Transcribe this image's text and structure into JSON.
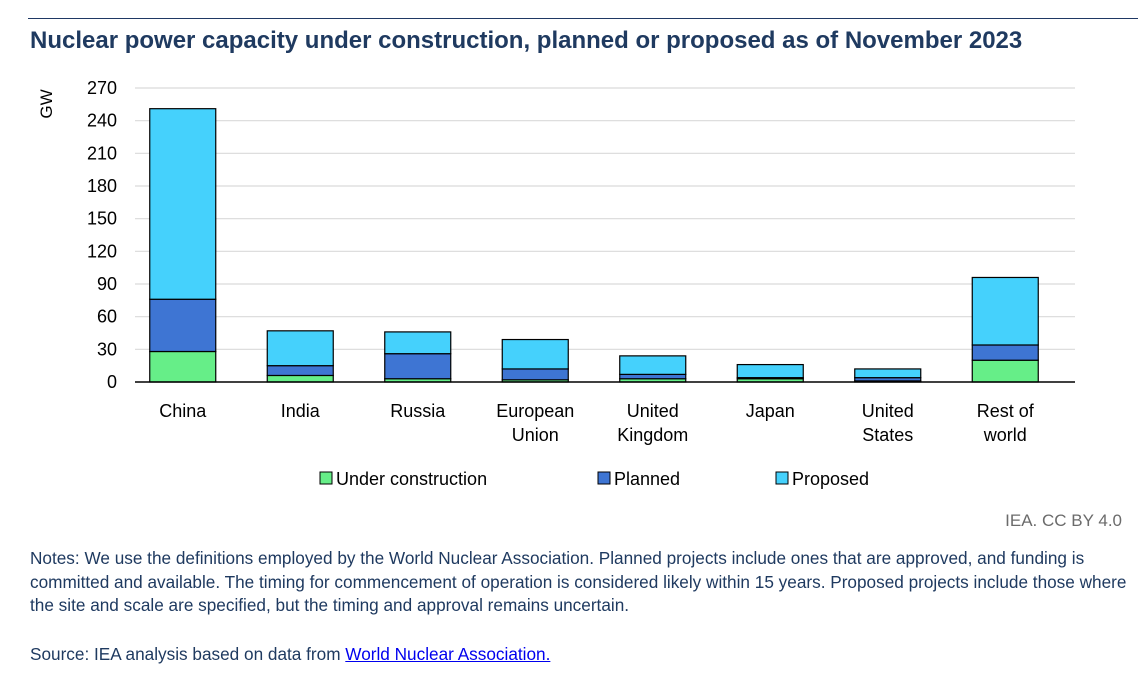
{
  "header": {
    "title": "Nuclear power capacity under construction, planned or proposed as of November 2023"
  },
  "chart_data": {
    "type": "bar",
    "stacked": true,
    "title": "Nuclear power capacity under construction, planned or proposed as of November 2023",
    "ylabel": "GW",
    "xlabel": "",
    "ylim": [
      0,
      270
    ],
    "yticks": [
      0,
      30,
      60,
      90,
      120,
      150,
      180,
      210,
      240,
      270
    ],
    "grid": true,
    "legend_position": "bottom",
    "categories": [
      [
        "China"
      ],
      [
        "India"
      ],
      [
        "Russia"
      ],
      [
        "European",
        "Union"
      ],
      [
        "United",
        "Kingdom"
      ],
      [
        "Japan"
      ],
      [
        "United",
        "States"
      ],
      [
        "Rest of",
        "world"
      ]
    ],
    "series": [
      {
        "name": "Under construction",
        "color": "#66ee88",
        "values": [
          28,
          6,
          3,
          2,
          3,
          3,
          1,
          20
        ]
      },
      {
        "name": "Planned",
        "color": "#3e75d3",
        "values": [
          48,
          9,
          23,
          10,
          4,
          1,
          3,
          14
        ]
      },
      {
        "name": "Proposed",
        "color": "#45d1fc",
        "values": [
          175,
          32,
          20,
          27,
          17,
          12,
          8,
          62
        ]
      }
    ]
  },
  "footer": {
    "credit": "IEA. CC BY 4.0",
    "notes": "Notes: We use the definitions employed by the World Nuclear Association. Planned projects include ones that are approved, and funding is committed and available. The timing for commencement of operation is considered likely within 15 years. Proposed projects include those where the site and scale are specified, but the timing and approval remains uncertain.",
    "source_prefix": "Source: IEA analysis based on data from ",
    "source_link": "World Nuclear Association."
  }
}
